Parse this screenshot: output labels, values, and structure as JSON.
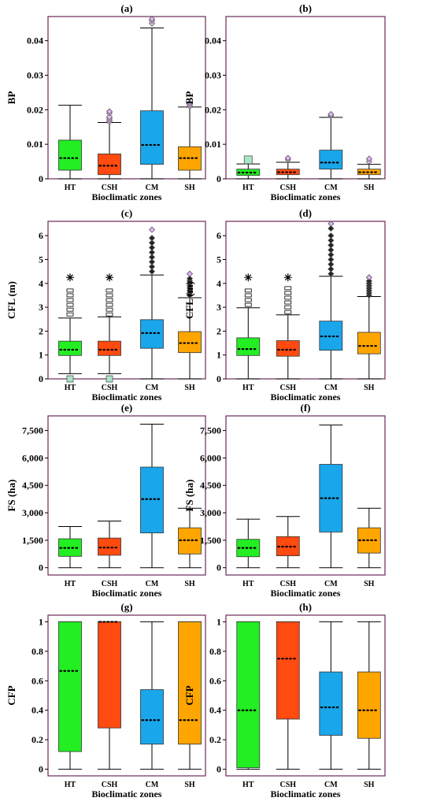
{
  "chart_data": [
    {
      "id": "a",
      "type": "box",
      "panel_label": "(a)",
      "xlabel": "Bioclimatic zones",
      "ylabel": "BP",
      "ylim": [
        0,
        0.047
      ],
      "yticks": [
        0,
        0.01,
        0.02,
        0.03,
        0.04
      ],
      "ytick_labels": [
        "0",
        "0.01",
        "0.02",
        "0.03",
        "0.04"
      ],
      "categories": [
        "HT",
        "CSH",
        "CM",
        "SH"
      ],
      "colors": [
        "#22ee22",
        "#ff4a10",
        "#1aa6ea",
        "#ffa500"
      ],
      "boxes": [
        {
          "whisker_low": 0,
          "q1": 0.0025,
          "median": 0.006,
          "q3": 0.0112,
          "whisker_high": 0.0213,
          "outliers": []
        },
        {
          "whisker_low": 0,
          "q1": 0.0012,
          "median": 0.0038,
          "q3": 0.0072,
          "whisker_high": 0.0163,
          "outliers": [
            0.0165,
            0.017,
            0.0175,
            0.018,
            0.019,
            0.0195
          ]
        },
        {
          "whisker_low": 0,
          "q1": 0.0042,
          "median": 0.0098,
          "q3": 0.0197,
          "whisker_high": 0.0437,
          "outliers": [
            0.045,
            0.0458,
            0.0463
          ]
        },
        {
          "whisker_low": 0,
          "q1": 0.0025,
          "median": 0.006,
          "q3": 0.0093,
          "whisker_high": 0.0208,
          "outliers": [
            0.021,
            0.0215,
            0.022
          ]
        }
      ]
    },
    {
      "id": "b",
      "type": "box",
      "panel_label": "(b)",
      "xlabel": "Bioclimatic zones",
      "ylabel": "BP",
      "ylim": [
        0,
        0.047
      ],
      "yticks": [
        0,
        0.01,
        0.02,
        0.03,
        0.04
      ],
      "ytick_labels": [
        "0",
        "0.01",
        "0.02",
        "0.03",
        "0.04"
      ],
      "categories": [
        "HT",
        "CSH",
        "CM",
        "SH"
      ],
      "colors": [
        "#22ee22",
        "#ff4a10",
        "#1aa6ea",
        "#ffa500"
      ],
      "boxes": [
        {
          "whisker_low": 0,
          "q1": 0.001,
          "median": 0.0018,
          "q3": 0.0028,
          "whisker_high": 0.0043,
          "outliers": [
            0.0055
          ]
        },
        {
          "whisker_low": 0,
          "q1": 0.0012,
          "median": 0.0019,
          "q3": 0.0028,
          "whisker_high": 0.0048,
          "outliers": [
            0.0055,
            0.006
          ]
        },
        {
          "whisker_low": 0,
          "q1": 0.0028,
          "median": 0.0047,
          "q3": 0.0083,
          "whisker_high": 0.0178,
          "outliers": [
            0.0183,
            0.0187
          ]
        },
        {
          "whisker_low": 0,
          "q1": 0.0012,
          "median": 0.0019,
          "q3": 0.0028,
          "whisker_high": 0.0042,
          "outliers": [
            0.005,
            0.0058
          ]
        }
      ]
    },
    {
      "id": "c",
      "type": "box",
      "panel_label": "(c)",
      "xlabel": "Bioclimatic zones",
      "ylabel": "CFL (m)",
      "ylim": [
        0,
        6.6
      ],
      "yticks": [
        0,
        1,
        2,
        3,
        4,
        5,
        6
      ],
      "ytick_labels": [
        "0",
        "1",
        "2",
        "3",
        "4",
        "5",
        "6"
      ],
      "categories": [
        "HT",
        "CSH",
        "CM",
        "SH"
      ],
      "colors": [
        "#22ee22",
        "#ff4a10",
        "#1aa6ea",
        "#ffa500"
      ],
      "boxes": [
        {
          "whisker_low": 0.22,
          "q1": 0.98,
          "median": 1.22,
          "q3": 1.58,
          "whisker_high": 2.55,
          "outliers": [
            0.0,
            2.7,
            2.9,
            3.1,
            3.3,
            3.5,
            3.7,
            4.25
          ]
        },
        {
          "whisker_low": 0.22,
          "q1": 0.98,
          "median": 1.22,
          "q3": 1.58,
          "whisker_high": 2.6,
          "outliers": [
            0.0,
            2.7,
            2.9,
            3.1,
            3.3,
            3.5,
            3.7,
            4.25
          ]
        },
        {
          "whisker_low": 0,
          "q1": 1.28,
          "median": 1.92,
          "q3": 2.48,
          "whisker_high": 4.35,
          "outliers": [
            4.5,
            4.7,
            4.9,
            5.1,
            5.3,
            5.5,
            5.7,
            5.9,
            6.25
          ]
        },
        {
          "whisker_low": 0,
          "q1": 1.1,
          "median": 1.5,
          "q3": 1.98,
          "whisker_high": 3.4,
          "outliers": [
            3.5,
            3.6,
            3.7,
            3.8,
            3.9,
            4.0,
            4.1,
            4.2,
            4.4
          ]
        }
      ]
    },
    {
      "id": "d",
      "type": "box",
      "panel_label": "(d)",
      "xlabel": "Bioclimatic zones",
      "ylabel": "CFL (m)",
      "ylim": [
        0,
        6.6
      ],
      "yticks": [
        0,
        1,
        2,
        3,
        4,
        5,
        6
      ],
      "ytick_labels": [
        "0",
        "1",
        "2",
        "3",
        "4",
        "5",
        "6"
      ],
      "categories": [
        "HT",
        "CSH",
        "CM",
        "SH"
      ],
      "colors": [
        "#22ee22",
        "#ff4a10",
        "#1aa6ea",
        "#ffa500"
      ],
      "boxes": [
        {
          "whisker_low": 0,
          "q1": 0.98,
          "median": 1.25,
          "q3": 1.72,
          "whisker_high": 2.98,
          "outliers": [
            3.1,
            3.3,
            3.5,
            3.7,
            4.25
          ]
        },
        {
          "whisker_low": 0,
          "q1": 0.95,
          "median": 1.22,
          "q3": 1.6,
          "whisker_high": 2.68,
          "outliers": [
            2.8,
            3.0,
            3.2,
            3.4,
            3.6,
            3.8,
            4.25
          ]
        },
        {
          "whisker_low": 0,
          "q1": 1.2,
          "median": 1.78,
          "q3": 2.42,
          "whisker_high": 4.3,
          "outliers": [
            4.4,
            4.6,
            4.8,
            5.0,
            5.2,
            5.4,
            5.6,
            5.8,
            6.0,
            6.3,
            6.5
          ]
        },
        {
          "whisker_low": 0,
          "q1": 1.05,
          "median": 1.38,
          "q3": 1.95,
          "whisker_high": 3.45,
          "outliers": [
            3.5,
            3.6,
            3.7,
            3.8,
            3.9,
            4.0,
            4.1,
            4.25
          ]
        }
      ]
    },
    {
      "id": "e",
      "type": "box",
      "panel_label": "(e)",
      "xlabel": "Bioclimatic zones",
      "ylabel": "FS (ha)",
      "ylim": [
        -400,
        8300
      ],
      "yticks": [
        0,
        1500,
        3000,
        4500,
        6000,
        7500
      ],
      "ytick_labels": [
        "0",
        "1,500",
        "3,000",
        "4,500",
        "6,000",
        "7,500"
      ],
      "categories": [
        "HT",
        "CSH",
        "CM",
        "SH"
      ],
      "colors": [
        "#22ee22",
        "#ff4a10",
        "#1aa6ea",
        "#ffa500"
      ],
      "boxes": [
        {
          "whisker_low": 0,
          "q1": 620,
          "median": 1080,
          "q3": 1580,
          "whisker_high": 2250,
          "outliers": []
        },
        {
          "whisker_low": 0,
          "q1": 680,
          "median": 1100,
          "q3": 1620,
          "whisker_high": 2550,
          "outliers": []
        },
        {
          "whisker_low": 0,
          "q1": 1900,
          "median": 3750,
          "q3": 5500,
          "whisker_high": 7850,
          "outliers": []
        },
        {
          "whisker_low": 0,
          "q1": 750,
          "median": 1500,
          "q3": 2180,
          "whisker_high": 3250,
          "outliers": []
        }
      ]
    },
    {
      "id": "f",
      "type": "box",
      "panel_label": "(f)",
      "xlabel": "Bioclimatic zones",
      "ylabel": "FS (ha)",
      "ylim": [
        -400,
        8300
      ],
      "yticks": [
        0,
        1500,
        3000,
        4500,
        6000,
        7500
      ],
      "ytick_labels": [
        "0",
        "1,500",
        "3,000",
        "4,500",
        "6,000",
        "7,500"
      ],
      "categories": [
        "HT",
        "CSH",
        "CM",
        "SH"
      ],
      "colors": [
        "#22ee22",
        "#ff4a10",
        "#1aa6ea",
        "#ffa500"
      ],
      "boxes": [
        {
          "whisker_low": 0,
          "q1": 600,
          "median": 1080,
          "q3": 1550,
          "whisker_high": 2650,
          "outliers": []
        },
        {
          "whisker_low": 0,
          "q1": 650,
          "median": 1150,
          "q3": 1700,
          "whisker_high": 2800,
          "outliers": []
        },
        {
          "whisker_low": 0,
          "q1": 1950,
          "median": 3800,
          "q3": 5650,
          "whisker_high": 7800,
          "outliers": []
        },
        {
          "whisker_low": 0,
          "q1": 800,
          "median": 1500,
          "q3": 2180,
          "whisker_high": 3250,
          "outliers": []
        }
      ]
    },
    {
      "id": "g",
      "type": "box",
      "panel_label": "(g)",
      "xlabel": "Bioclimatic zones",
      "ylabel": "CFP",
      "ylim": [
        -0.045,
        1.045
      ],
      "yticks": [
        0,
        0.2,
        0.4,
        0.6,
        0.8,
        1
      ],
      "ytick_labels": [
        "0",
        "0.2",
        "0.4",
        "0.6",
        "0.8",
        "1"
      ],
      "categories": [
        "HT",
        "CSH",
        "CM",
        "SH"
      ],
      "colors": [
        "#22ee22",
        "#ff4a10",
        "#1aa6ea",
        "#ffa500"
      ],
      "boxes": [
        {
          "whisker_low": 0,
          "q1": 0.12,
          "median": 0.667,
          "q3": 1,
          "whisker_high": 1,
          "outliers": []
        },
        {
          "whisker_low": 0,
          "q1": 0.28,
          "median": 1,
          "q3": 1,
          "whisker_high": 1,
          "outliers": []
        },
        {
          "whisker_low": 0,
          "q1": 0.17,
          "median": 0.333,
          "q3": 0.54,
          "whisker_high": 1,
          "outliers": []
        },
        {
          "whisker_low": 0,
          "q1": 0.17,
          "median": 0.333,
          "q3": 1,
          "whisker_high": 1,
          "outliers": []
        }
      ]
    },
    {
      "id": "h",
      "type": "box",
      "panel_label": "(h)",
      "xlabel": "Bioclimatic zones",
      "ylabel": "CFP",
      "ylim": [
        -0.045,
        1.045
      ],
      "yticks": [
        0,
        0.2,
        0.4,
        0.6,
        0.8,
        1
      ],
      "ytick_labels": [
        "0",
        "0.2",
        "0.4",
        "0.6",
        "0.8",
        "1"
      ],
      "categories": [
        "HT",
        "CSH",
        "CM",
        "SH"
      ],
      "colors": [
        "#22ee22",
        "#ff4a10",
        "#1aa6ea",
        "#ffa500"
      ],
      "boxes": [
        {
          "whisker_low": 0,
          "q1": 0.01,
          "median": 0.4,
          "q3": 1,
          "whisker_high": 1,
          "outliers": []
        },
        {
          "whisker_low": 0,
          "q1": 0.34,
          "median": 0.75,
          "q3": 1,
          "whisker_high": 1,
          "outliers": []
        },
        {
          "whisker_low": 0,
          "q1": 0.23,
          "median": 0.42,
          "q3": 0.66,
          "whisker_high": 1,
          "outliers": []
        },
        {
          "whisker_low": 0,
          "q1": 0.21,
          "median": 0.4,
          "q3": 0.66,
          "whisker_high": 1,
          "outliers": []
        }
      ]
    }
  ]
}
